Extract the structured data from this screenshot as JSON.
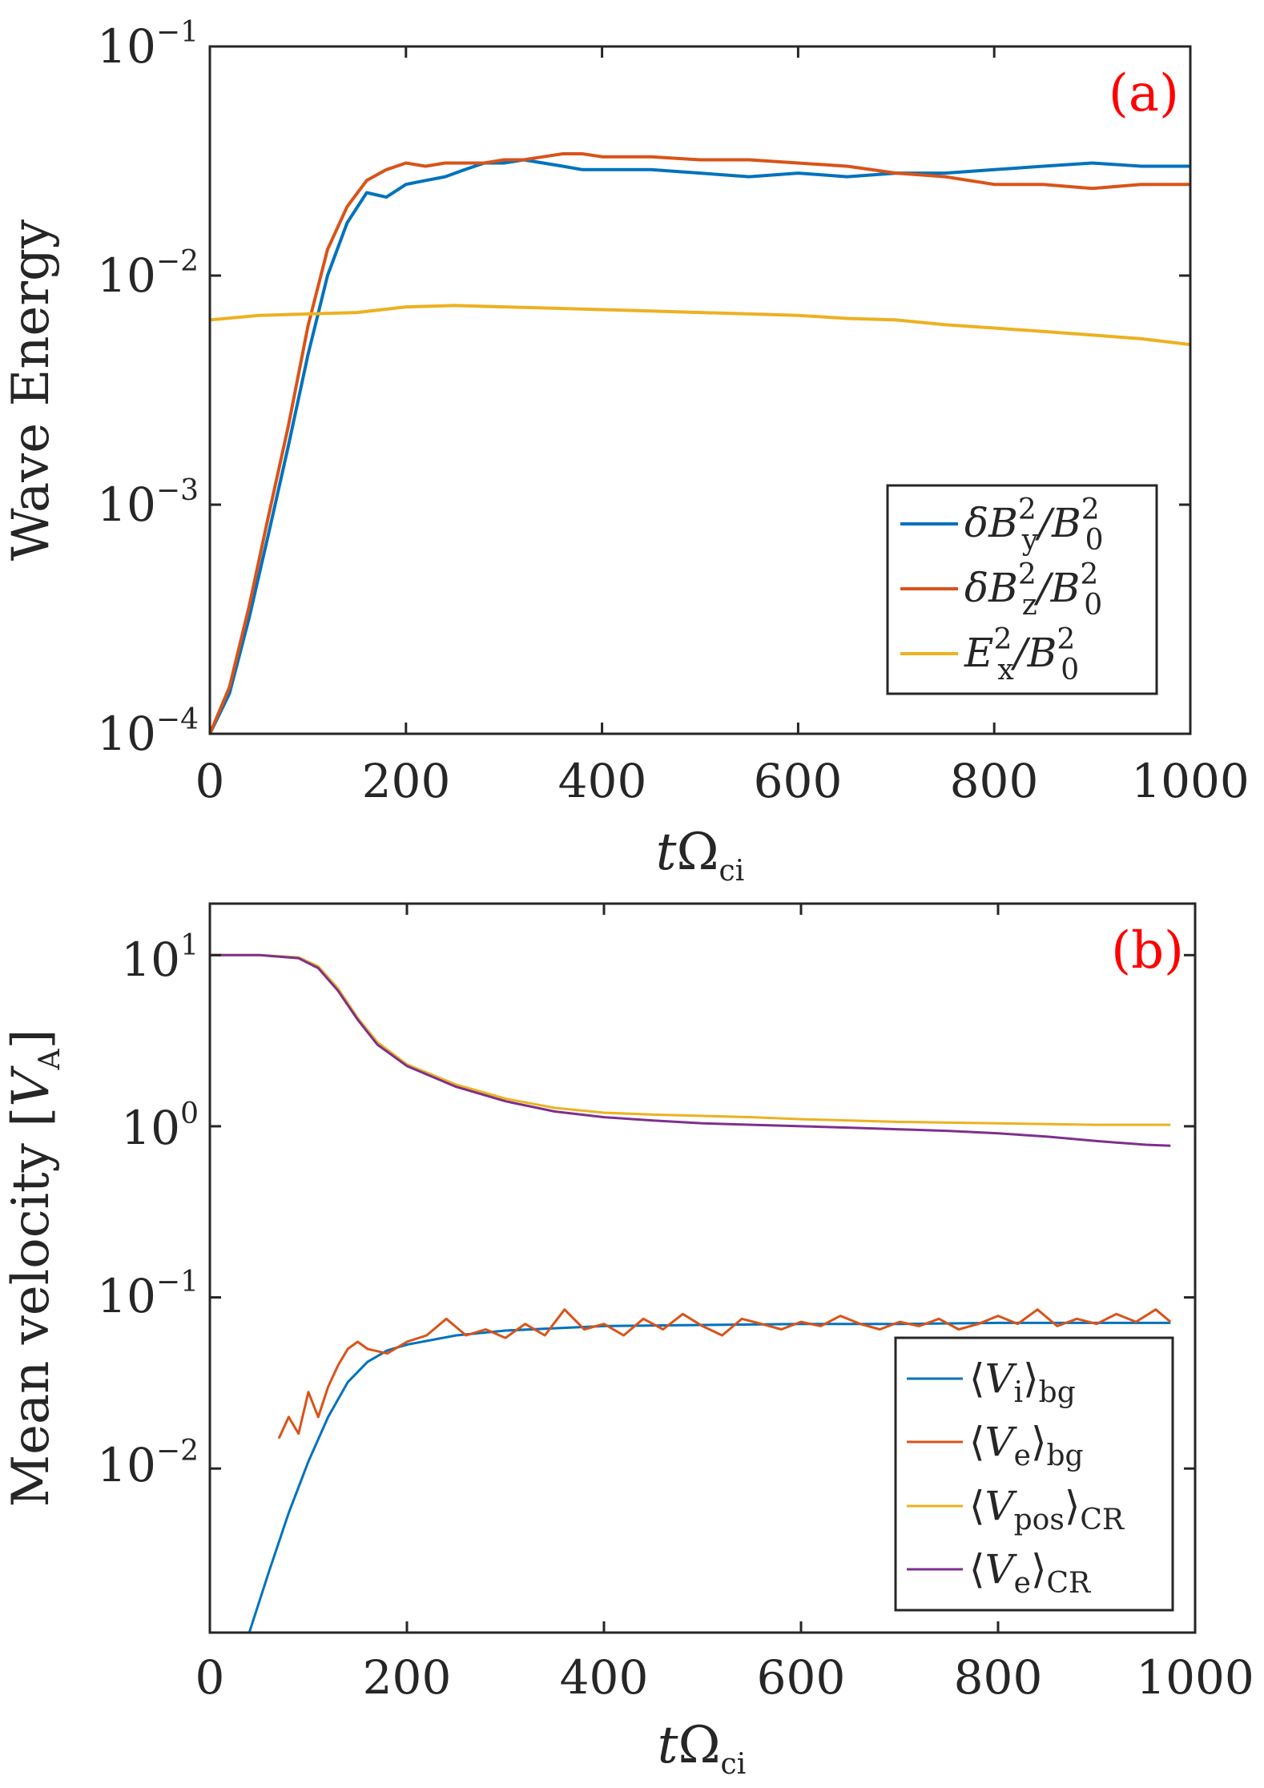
{
  "chart_data": [
    {
      "type": "line",
      "panel_tag": "(a)",
      "xlabel_main": "t",
      "xlabel_omega": "Ω",
      "xlabel_sub": "ci",
      "ylabel": "Wave Energy",
      "xscale": "linear",
      "yscale": "log",
      "xlim": [
        0,
        1000
      ],
      "ylim": [
        0.0001,
        0.1
      ],
      "x_ticks": [
        0,
        200,
        400,
        600,
        800,
        1000
      ],
      "x_tick_labels": [
        "0",
        "200",
        "400",
        "600",
        "800",
        "1000"
      ],
      "y_ticks": [
        {
          "base": "10",
          "exp": "−4",
          "value": 0.0001
        },
        {
          "base": "10",
          "exp": "−3",
          "value": 0.001
        },
        {
          "base": "10",
          "exp": "−2",
          "value": 0.01
        },
        {
          "base": "10",
          "exp": "−1",
          "value": 0.1
        }
      ],
      "legend_position": "lower-right",
      "series": [
        {
          "name": "δB_y^2/B_0^2",
          "legend": {
            "a": "δB",
            "sup": "2",
            "sub": "y",
            "b": "/B",
            "sup2": "2",
            "sub2": "0"
          },
          "color": "#0072bd",
          "x": [
            0,
            20,
            40,
            60,
            80,
            100,
            120,
            140,
            160,
            180,
            200,
            220,
            240,
            260,
            280,
            300,
            320,
            340,
            360,
            380,
            400,
            450,
            500,
            550,
            600,
            650,
            700,
            750,
            800,
            850,
            900,
            950,
            1000
          ],
          "y": [
            0.0001,
            0.00015,
            0.00032,
            0.00075,
            0.0018,
            0.0045,
            0.01,
            0.017,
            0.023,
            0.022,
            0.025,
            0.026,
            0.027,
            0.029,
            0.031,
            0.031,
            0.032,
            0.031,
            0.03,
            0.029,
            0.029,
            0.029,
            0.028,
            0.027,
            0.028,
            0.027,
            0.028,
            0.028,
            0.029,
            0.03,
            0.031,
            0.03,
            0.03
          ]
        },
        {
          "name": "δB_z^2/B_0^2",
          "legend": {
            "a": "δB",
            "sup": "2",
            "sub": "z",
            "b": "/B",
            "sup2": "2",
            "sub2": "0"
          },
          "color": "#d95319",
          "x": [
            0,
            20,
            40,
            60,
            80,
            100,
            120,
            140,
            160,
            180,
            200,
            220,
            240,
            260,
            280,
            300,
            320,
            340,
            360,
            380,
            400,
            450,
            500,
            550,
            600,
            650,
            700,
            750,
            800,
            850,
            900,
            950,
            1000
          ],
          "y": [
            0.0001,
            0.00016,
            0.00036,
            0.0009,
            0.0022,
            0.006,
            0.013,
            0.02,
            0.026,
            0.029,
            0.031,
            0.03,
            0.031,
            0.031,
            0.031,
            0.032,
            0.032,
            0.033,
            0.034,
            0.034,
            0.033,
            0.033,
            0.032,
            0.032,
            0.031,
            0.03,
            0.028,
            0.027,
            0.025,
            0.025,
            0.024,
            0.025,
            0.025
          ]
        },
        {
          "name": "E_x^2/B_0^2",
          "legend": {
            "a": "E",
            "sup": "2",
            "sub": "x",
            "b": "/B",
            "sup2": "2",
            "sub2": "0"
          },
          "color": "#edb120",
          "x": [
            0,
            50,
            100,
            150,
            200,
            250,
            300,
            350,
            400,
            450,
            500,
            550,
            600,
            650,
            700,
            750,
            800,
            850,
            900,
            950,
            1000
          ],
          "y": [
            0.0064,
            0.0067,
            0.0068,
            0.0069,
            0.0073,
            0.0074,
            0.0073,
            0.0072,
            0.0071,
            0.007,
            0.0069,
            0.0068,
            0.0067,
            0.0065,
            0.0064,
            0.0061,
            0.0059,
            0.0057,
            0.0055,
            0.0053,
            0.005
          ]
        }
      ]
    },
    {
      "type": "line",
      "panel_tag": "(b)",
      "xlabel_main": "t",
      "xlabel_omega": "Ω",
      "xlabel_sub": "ci",
      "ylabel_main": "Mean velocity [",
      "ylabel_var": "V",
      "ylabel_sub": "A",
      "ylabel_end": "]",
      "xscale": "linear",
      "yscale": "log",
      "xlim": [
        0,
        1000
      ],
      "ylim": [
        0.0011,
        20
      ],
      "x_ticks": [
        0,
        200,
        400,
        600,
        800,
        1000
      ],
      "x_tick_labels": [
        "0",
        "200",
        "400",
        "600",
        "800",
        "1000"
      ],
      "y_ticks": [
        {
          "base": "10",
          "exp": "−2",
          "value": 0.01
        },
        {
          "base": "10",
          "exp": "−1",
          "value": 0.1
        },
        {
          "base": "10",
          "exp": "0",
          "value": 1
        },
        {
          "base": "10",
          "exp": "1",
          "value": 10
        }
      ],
      "legend_position": "lower-right",
      "series": [
        {
          "name": "⟨V_i⟩_bg",
          "legend": {
            "var": "V",
            "vsub": "i",
            "sub": "bg"
          },
          "color": "#0072bd",
          "x": [
            40,
            60,
            80,
            100,
            120,
            140,
            160,
            180,
            200,
            250,
            300,
            350,
            400,
            500,
            600,
            700,
            800,
            900,
            975
          ],
          "y": [
            0.0011,
            0.0025,
            0.0055,
            0.011,
            0.02,
            0.032,
            0.042,
            0.049,
            0.053,
            0.06,
            0.064,
            0.066,
            0.068,
            0.069,
            0.07,
            0.07,
            0.071,
            0.071,
            0.071
          ]
        },
        {
          "name": "⟨V_e⟩_bg",
          "legend": {
            "var": "V",
            "vsub": "e",
            "sub": "bg"
          },
          "color": "#d95319",
          "x": [
            70,
            80,
            90,
            100,
            110,
            120,
            130,
            140,
            150,
            160,
            180,
            200,
            220,
            240,
            260,
            280,
            300,
            320,
            340,
            360,
            380,
            400,
            420,
            440,
            460,
            480,
            500,
            520,
            540,
            560,
            580,
            600,
            620,
            640,
            660,
            680,
            700,
            720,
            740,
            760,
            780,
            800,
            820,
            840,
            860,
            880,
            900,
            920,
            940,
            960,
            975
          ],
          "y": [
            0.015,
            0.02,
            0.016,
            0.028,
            0.02,
            0.03,
            0.04,
            0.05,
            0.055,
            0.05,
            0.047,
            0.055,
            0.06,
            0.075,
            0.06,
            0.065,
            0.058,
            0.07,
            0.06,
            0.085,
            0.065,
            0.07,
            0.06,
            0.075,
            0.065,
            0.08,
            0.068,
            0.06,
            0.075,
            0.07,
            0.065,
            0.072,
            0.068,
            0.078,
            0.07,
            0.065,
            0.072,
            0.068,
            0.075,
            0.065,
            0.07,
            0.078,
            0.07,
            0.085,
            0.068,
            0.075,
            0.07,
            0.08,
            0.072,
            0.085,
            0.072
          ]
        },
        {
          "name": "⟨V_pos⟩_CR",
          "legend": {
            "var": "V",
            "vsub": "pos",
            "sub": "CR"
          },
          "color": "#edb120",
          "x": [
            0,
            50,
            90,
            110,
            130,
            150,
            170,
            200,
            250,
            300,
            350,
            400,
            450,
            500,
            550,
            600,
            650,
            700,
            750,
            800,
            850,
            900,
            950,
            975
          ],
          "y": [
            10,
            10,
            9.7,
            8.6,
            6.4,
            4.3,
            3.1,
            2.3,
            1.75,
            1.45,
            1.28,
            1.2,
            1.17,
            1.15,
            1.13,
            1.1,
            1.08,
            1.06,
            1.05,
            1.04,
            1.03,
            1.02,
            1.02,
            1.02
          ]
        },
        {
          "name": "⟨V_e⟩_CR",
          "legend": {
            "var": "V",
            "vsub": "e",
            "sub": "CR"
          },
          "color": "#7e2f8e",
          "x": [
            0,
            50,
            90,
            110,
            130,
            150,
            170,
            200,
            250,
            300,
            350,
            400,
            450,
            500,
            550,
            600,
            650,
            700,
            750,
            800,
            850,
            900,
            950,
            975
          ],
          "y": [
            10,
            10,
            9.6,
            8.4,
            6.2,
            4.2,
            3.0,
            2.25,
            1.7,
            1.4,
            1.22,
            1.13,
            1.08,
            1.04,
            1.02,
            1.0,
            0.98,
            0.96,
            0.94,
            0.91,
            0.87,
            0.82,
            0.78,
            0.77
          ]
        }
      ]
    }
  ]
}
